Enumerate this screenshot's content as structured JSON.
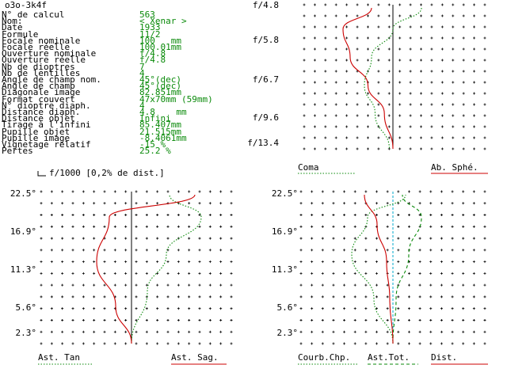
{
  "window": {
    "title": "o3o-3k4f"
  },
  "colors": {
    "label": "#000000",
    "value": "#0a8a0a",
    "red": "#cc0000",
    "green": "#0a8a0a",
    "cyan": "#00aacc"
  },
  "specs": [
    {
      "label": "N° de calcul",
      "value": "563"
    },
    {
      "label": "Nom:",
      "value": "< Xenar >"
    },
    {
      "label": "Date",
      "value": "1933"
    },
    {
      "label": "Formule",
      "value": "11/2"
    },
    {
      "label": "Focale nominale",
      "value": "100   mm"
    },
    {
      "label": "Focale réelle",
      "value": "100.01mm"
    },
    {
      "label": "Ouverture nominale",
      "value": "f/4.8"
    },
    {
      "label": "Ouverture réelle",
      "value": "f/4.8"
    },
    {
      "label": "Nb de dioptres",
      "value": "7"
    },
    {
      "label": "Nb de lentilles",
      "value": "4"
    },
    {
      "label": "Angle de champ nom.",
      "value": "45°(dec)"
    },
    {
      "label": "Angle de champ",
      "value": "45°(dec)"
    },
    {
      "label": "Diagonale image",
      "value": "82.851mm"
    },
    {
      "label": "Format couvert",
      "value": "47x70mm (59mm)"
    },
    {
      "label": "N° dioptre diaph.",
      "value": "4"
    },
    {
      "label": "Distance diaph.",
      "value": "4.8    mm"
    },
    {
      "label": "Distance objet",
      "value": "Infini"
    },
    {
      "label": "Tirage à l'infini",
      "value": "85.407mm"
    },
    {
      "label": "Pupille objet",
      "value": "21.515mm"
    },
    {
      "label": "Pupille image",
      "value": "-8.4061mm"
    },
    {
      "label": "Vignetage relatif",
      "value": "-15 %"
    },
    {
      "label": "Pertes",
      "value": "25.2 %"
    }
  ],
  "chart_data": [
    {
      "type": "line",
      "ticks": [
        "f/4.8",
        "f/5.8",
        "f/6.7",
        "f/9.6",
        "f/13.4"
      ],
      "series": [
        {
          "name": "Coma",
          "color": "#0a8a0a",
          "style": "dotted",
          "points": [
            [
              0.4,
              1.0
            ],
            [
              0.0,
              0.85
            ],
            [
              -0.3,
              0.65
            ],
            [
              -0.4,
              0.45
            ],
            [
              -0.25,
              0.25
            ],
            [
              -0.05,
              0.0
            ]
          ]
        },
        {
          "name": "Ab. Sphé.",
          "color": "#cc0000",
          "style": "solid",
          "points": [
            [
              -0.3,
              1.0
            ],
            [
              -0.7,
              0.85
            ],
            [
              -0.6,
              0.65
            ],
            [
              -0.35,
              0.45
            ],
            [
              -0.12,
              0.25
            ],
            [
              0.0,
              0.0
            ]
          ]
        }
      ]
    },
    {
      "type": "line",
      "title": "f/1000 [0,2% de dist.]",
      "ticks": [
        "22.5°",
        "16.9°",
        "11.3°",
        "5.6°",
        "2.3°"
      ],
      "series": [
        {
          "name": "Ast. Tan",
          "color": "#0a8a0a",
          "style": "dotted",
          "points": [
            [
              0.0,
              0.0
            ],
            [
              0.25,
              0.35
            ],
            [
              0.55,
              0.6
            ],
            [
              1.1,
              0.85
            ],
            [
              0.6,
              1.0
            ]
          ]
        },
        {
          "name": "Ast. Sag.",
          "color": "#cc0000",
          "style": "solid",
          "points": [
            [
              0.0,
              0.0
            ],
            [
              -0.25,
              0.25
            ],
            [
              -0.55,
              0.55
            ],
            [
              -0.35,
              0.85
            ],
            [
              1.0,
              1.0
            ]
          ]
        }
      ]
    },
    {
      "type": "line",
      "ticks": [
        "22.5°",
        "16.9°",
        "11.3°",
        "5.6°",
        "2.3°"
      ],
      "series": [
        {
          "name": "Courb.Chp.",
          "color": "#0a8a0a",
          "style": "dotted",
          "points": [
            [
              0.0,
              0.0
            ],
            [
              -0.3,
              0.3
            ],
            [
              -0.65,
              0.6
            ],
            [
              -0.4,
              0.85
            ],
            [
              0.2,
              1.0
            ]
          ]
        },
        {
          "name": "Ast.Tot.",
          "color": "#0a8a0a",
          "style": "dashed",
          "points": [
            [
              0.0,
              0.0
            ],
            [
              0.05,
              0.3
            ],
            [
              0.25,
              0.6
            ],
            [
              0.45,
              0.85
            ],
            [
              0.15,
              1.0
            ]
          ]
        },
        {
          "name": "Dist.",
          "color": "#cc0000",
          "style": "solid",
          "points": [
            [
              0.0,
              0.0
            ],
            [
              -0.05,
              0.3
            ],
            [
              -0.1,
              0.55
            ],
            [
              -0.25,
              0.8
            ],
            [
              -0.45,
              1.0
            ]
          ]
        }
      ]
    }
  ]
}
